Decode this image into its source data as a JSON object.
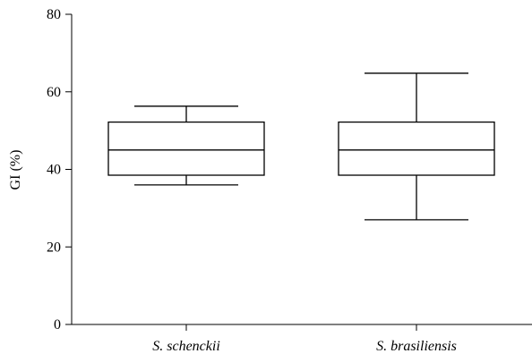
{
  "chart_data": {
    "type": "box",
    "title": "",
    "xlabel": "",
    "ylabel": "GI (%)",
    "ylim": [
      0,
      80
    ],
    "yticks": [
      "0",
      "20",
      "40",
      "60",
      "80"
    ],
    "categories": [
      "S. schenckii",
      "S. brasiliensis"
    ],
    "boxes": [
      {
        "name": "S. schenckii",
        "whisker_low": 36,
        "q1": 38.5,
        "median": 45,
        "q3": 52.2,
        "whisker_high": 56.3
      },
      {
        "name": "S. brasiliensis",
        "whisker_low": 27,
        "q1": 38.5,
        "median": 45,
        "q3": 52.2,
        "whisker_high": 64.8
      }
    ],
    "grid": false,
    "legend": false
  }
}
